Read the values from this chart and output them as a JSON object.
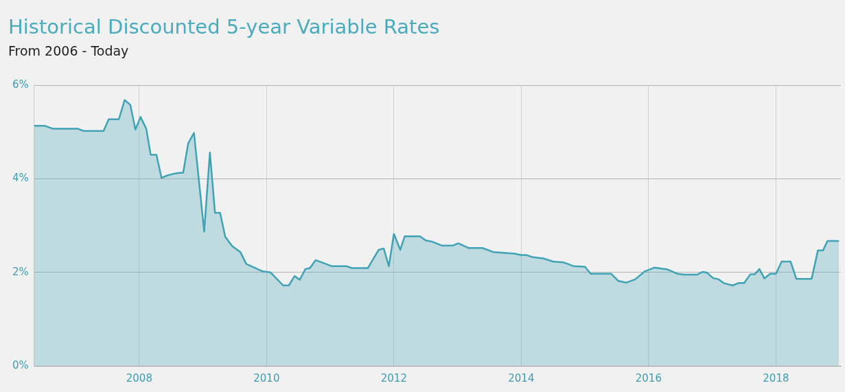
{
  "chart_data": {
    "type": "area",
    "title": "Historical Discounted 5-year Variable Rates",
    "subtitle": "From 2006 - Today",
    "xlim": [
      2006.35,
      2019.02
    ],
    "xticks": [
      2008,
      2010,
      2012,
      2014,
      2016,
      2018
    ],
    "ylim": [
      0,
      6
    ],
    "yticks": [
      {
        "value": 0,
        "label": "0%"
      },
      {
        "value": 2,
        "label": "2%"
      },
      {
        "value": 4,
        "label": "4%"
      },
      {
        "value": 6,
        "label": "6%"
      }
    ],
    "grid": true,
    "legend": false,
    "marker": "none",
    "series": [
      {
        "color": "#3fa3b5",
        "x": [
          2006.35,
          2006.52,
          2006.64,
          2007.03,
          2007.13,
          2007.44,
          2007.52,
          2007.68,
          2007.77,
          2007.86,
          2007.94,
          2008.02,
          2008.11,
          2008.18,
          2008.27,
          2008.35,
          2008.44,
          2008.59,
          2008.69,
          2008.77,
          2008.86,
          2009.02,
          2009.11,
          2009.19,
          2009.27,
          2009.35,
          2009.46,
          2009.59,
          2009.68,
          2009.94,
          2010.06,
          2010.26,
          2010.35,
          2010.44,
          2010.52,
          2010.61,
          2010.68,
          2010.77,
          2011.03,
          2011.26,
          2011.34,
          2011.59,
          2011.76,
          2011.84,
          2011.92,
          2012.0,
          2012.1,
          2012.17,
          2012.41,
          2012.5,
          2012.59,
          2012.76,
          2012.92,
          2013.01,
          2013.17,
          2013.39,
          2013.57,
          2013.9,
          2013.99,
          2014.08,
          2014.19,
          2014.34,
          2014.5,
          2014.67,
          2014.83,
          2015.0,
          2015.09,
          2015.41,
          2015.52,
          2015.65,
          2015.79,
          2015.94,
          2016.09,
          2016.3,
          2016.45,
          2016.56,
          2016.76,
          2016.85,
          2016.92,
          2017.01,
          2017.1,
          2017.18,
          2017.32,
          2017.41,
          2017.5,
          2017.6,
          2017.67,
          2017.74,
          2017.82,
          2017.91,
          2018.0,
          2018.09,
          2018.23,
          2018.32,
          2018.56,
          2018.66,
          2018.74,
          2018.81,
          2018.99
        ],
        "values": [
          5.13,
          5.13,
          5.07,
          5.07,
          5.02,
          5.02,
          5.27,
          5.27,
          5.68,
          5.58,
          5.05,
          5.32,
          5.07,
          4.51,
          4.51,
          4.02,
          4.07,
          4.12,
          4.13,
          4.76,
          4.98,
          2.87,
          4.56,
          3.27,
          3.27,
          2.76,
          2.56,
          2.43,
          2.18,
          2.02,
          2.0,
          1.72,
          1.72,
          1.92,
          1.84,
          2.07,
          2.09,
          2.26,
          2.13,
          2.13,
          2.09,
          2.09,
          2.48,
          2.51,
          2.13,
          2.82,
          2.48,
          2.77,
          2.77,
          2.68,
          2.66,
          2.57,
          2.57,
          2.62,
          2.52,
          2.52,
          2.43,
          2.4,
          2.37,
          2.37,
          2.32,
          2.3,
          2.23,
          2.21,
          2.13,
          2.12,
          1.97,
          1.97,
          1.82,
          1.78,
          1.85,
          2.02,
          2.1,
          2.06,
          1.97,
          1.95,
          1.95,
          2.01,
          1.99,
          1.88,
          1.85,
          1.77,
          1.72,
          1.77,
          1.77,
          1.96,
          1.96,
          2.07,
          1.87,
          1.97,
          1.97,
          2.23,
          2.23,
          1.86,
          1.86,
          2.47,
          2.47,
          2.67,
          2.67
        ]
      }
    ]
  }
}
